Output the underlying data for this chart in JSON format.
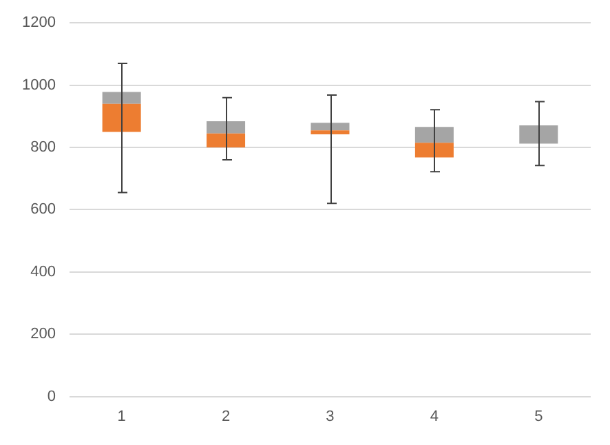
{
  "chart_data": {
    "type": "box",
    "categories": [
      "1",
      "2",
      "3",
      "4",
      "5"
    ],
    "series": [
      {
        "color": "#a5a5a5",
        "colors": [
          "#ed7d31",
          "#ed7d31",
          "#ed7d31",
          "#ed7d31",
          null
        ],
        "boxes": [
          {
            "low": 655,
            "q1": 850,
            "median": 940,
            "q3": 978,
            "high": 1070
          },
          {
            "low": 760,
            "q1": 800,
            "median": 845,
            "q3": 884,
            "high": 960
          },
          {
            "low": 620,
            "q1": 842,
            "median": 855,
            "q3": 879,
            "high": 968
          },
          {
            "low": 722,
            "q1": 768,
            "median": 815,
            "q3": 866,
            "high": 921
          },
          {
            "low": 742,
            "q1": 812,
            "median": 812,
            "q3": 871,
            "high": 947
          }
        ]
      }
    ],
    "ylim": [
      0,
      1200
    ],
    "yticks": [
      0,
      200,
      400,
      600,
      800,
      1000,
      1200
    ],
    "grid": "y",
    "legend": false
  }
}
